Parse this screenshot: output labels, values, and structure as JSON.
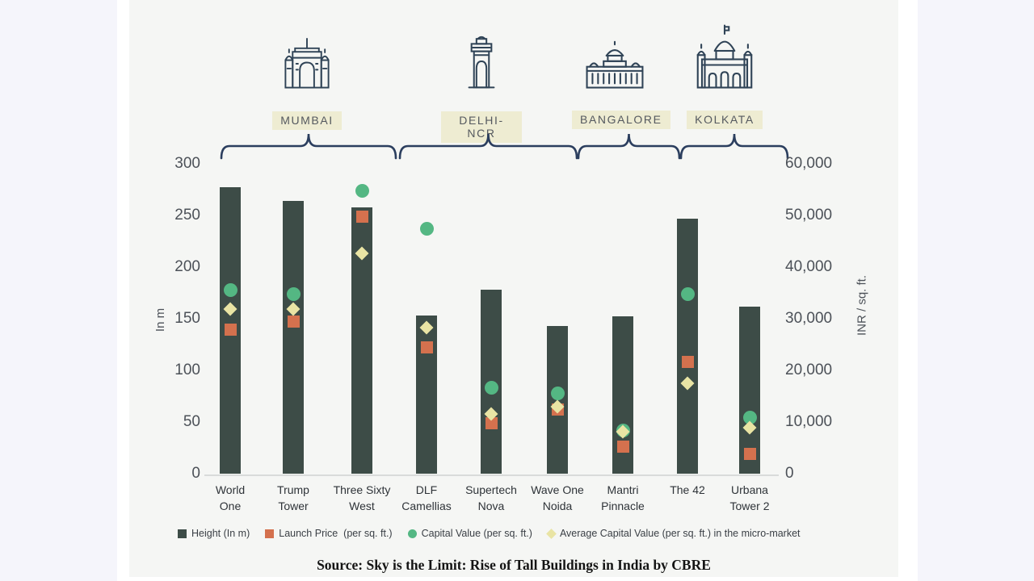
{
  "source_text": "Source: Sky is the Limit: Rise of Tall Buildings in India by CBRE",
  "colors": {
    "bar": "#3d4c47",
    "launch_price": "#d4714e",
    "capital_value": "#54b783",
    "avg_capital_value": "#e9e4a4",
    "brace": "#2b3e5e",
    "city_label_bg": "#eeecd2",
    "panel_bg": "#f5f6f4",
    "icon_stroke": "#2f4356",
    "axis_text": "#4c5158"
  },
  "cities": [
    {
      "name": "MUMBAI",
      "icon": "gateway-of-india-icon",
      "building_span": [
        0,
        2
      ]
    },
    {
      "name": "DELHI-NCR",
      "icon": "india-gate-icon",
      "building_span": [
        3,
        5
      ]
    },
    {
      "name": "BANGALORE",
      "icon": "vidhana-soudha-icon",
      "building_span": [
        6,
        6
      ]
    },
    {
      "name": "KOLKATA",
      "icon": "victoria-memorial-icon",
      "building_span": [
        7,
        8
      ]
    }
  ],
  "chart_data": {
    "type": "bar",
    "subtype": "combo-bar-with-scatter-markers",
    "categories": [
      "World\nOne",
      "Trump\nTower",
      "Three Sixty\nWest",
      "DLF\nCamellias",
      "Supertech\nNova",
      "Wave One\nNoida",
      "Mantri\nPinnacle",
      "The 42",
      "Urbana\nTower 2"
    ],
    "series": [
      {
        "name": "Height (In m)",
        "type": "bar",
        "axis": "left",
        "marker": "bar",
        "values": [
          277,
          264,
          258,
          153,
          178,
          143,
          152,
          247,
          162
        ]
      },
      {
        "name": "Launch Price  (per sq. ft.)",
        "type": "scatter",
        "axis": "right",
        "marker": "square",
        "values": [
          27900,
          29500,
          49800,
          24500,
          9800,
          12500,
          5300,
          21700,
          3900
        ]
      },
      {
        "name": "Capital Value (per sq. ft.)",
        "type": "scatter",
        "axis": "right",
        "marker": "circle",
        "values": [
          35500,
          34700,
          54700,
          47500,
          16700,
          15600,
          8300,
          34700,
          10800
        ]
      },
      {
        "name": "Average Capital Value (per sq. ft.) in the micro-market",
        "type": "scatter",
        "axis": "right",
        "marker": "diamond",
        "values": [
          31900,
          31900,
          42700,
          28300,
          11600,
          13000,
          8100,
          17500,
          8900
        ]
      }
    ],
    "left_axis": {
      "label": "In m",
      "ticks": [
        300,
        250,
        200,
        150,
        100,
        50,
        0
      ],
      "min": 0,
      "max": 300
    },
    "right_axis": {
      "label": "INR / sq. ft.",
      "ticks": [
        "60,000",
        "50,000",
        "40,000",
        "30,000",
        "20,000",
        "10,000",
        "0"
      ],
      "min": 0,
      "max": 60000
    },
    "grid": false,
    "legend_position": "bottom"
  }
}
